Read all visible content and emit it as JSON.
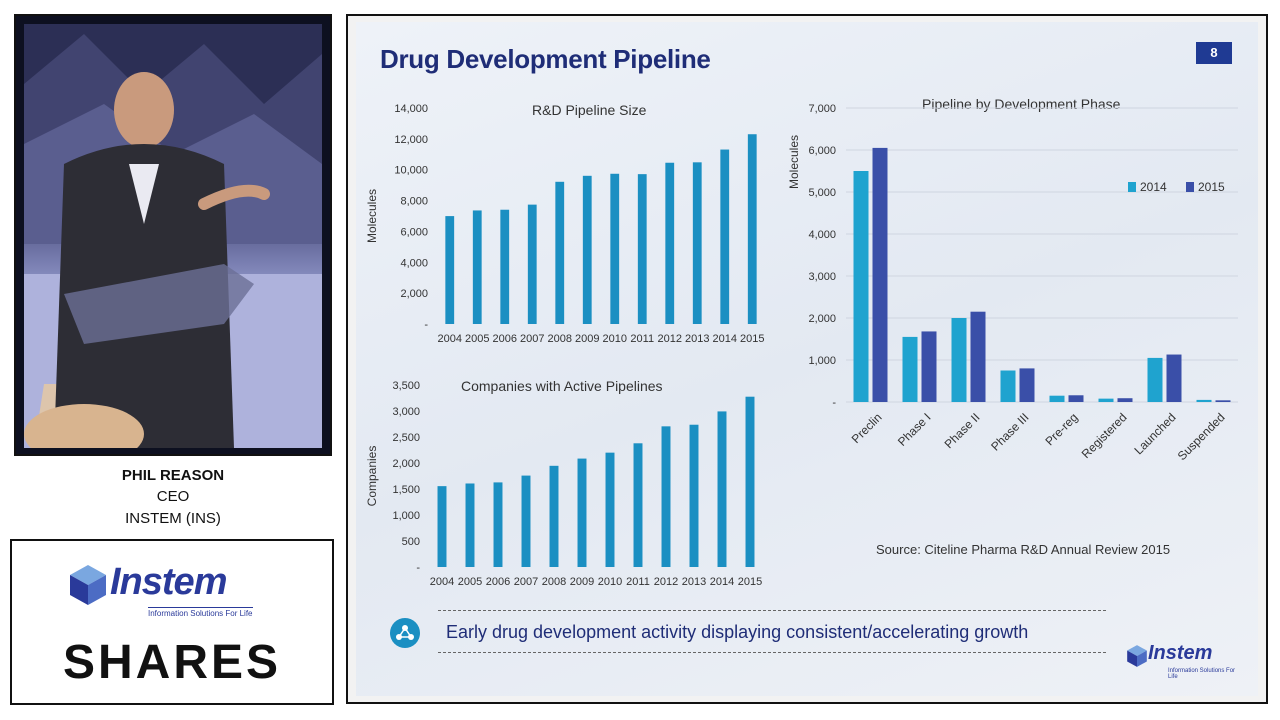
{
  "speaker": {
    "name": "PHIL REASON",
    "role": "CEO",
    "company": "INSTEM (INS)"
  },
  "logo": {
    "brand": "Instem",
    "tagline": "Information Solutions For Life",
    "brand_color": "#2a3a9a"
  },
  "shares_label": "SHARES",
  "slide": {
    "title": "Drug Development Pipeline",
    "page_number": "8",
    "source": "Source: Citeline Pharma R&D Annual Review 2015",
    "banner_text": "Early drug development activity displaying consistent/accelerating growth",
    "footer_logo": "Instem",
    "footer_tagline": "Information Solutions For Life"
  },
  "chart_data": [
    {
      "type": "bar",
      "title": "R&D Pipeline Size",
      "xlabel": "",
      "ylabel": "Molecules",
      "categories": [
        "2004",
        "2005",
        "2006",
        "2007",
        "2008",
        "2009",
        "2010",
        "2011",
        "2012",
        "2013",
        "2014",
        "2015"
      ],
      "values": [
        6994,
        7360,
        7406,
        7737,
        9217,
        9605,
        9737,
        9713,
        10452,
        10479,
        11307,
        12300
      ],
      "ylim": [
        0,
        14000
      ],
      "yticks": [
        "-",
        "2,000",
        "4,000",
        "6,000",
        "8,000",
        "10,000",
        "12,000",
        "14,000"
      ],
      "color": "#1b8fc2",
      "grid": false
    },
    {
      "type": "bar",
      "title": "Companies with Active Pipelines",
      "xlabel": "",
      "ylabel": "Companies",
      "categories": [
        "2004",
        "2005",
        "2006",
        "2007",
        "2008",
        "2009",
        "2010",
        "2011",
        "2012",
        "2013",
        "2014",
        "2015"
      ],
      "values": [
        1555,
        1606,
        1627,
        1758,
        1946,
        2085,
        2199,
        2379,
        2705,
        2736,
        2992,
        3275
      ],
      "ylim": [
        0,
        3500
      ],
      "yticks": [
        "-",
        "500",
        "1,000",
        "1,500",
        "2,000",
        "2,500",
        "3,000",
        "3,500"
      ],
      "color": "#1b8fc2",
      "grid": false
    },
    {
      "type": "bar",
      "title": "Pipeline by Development Phase",
      "xlabel": "",
      "ylabel": "Molecules",
      "categories": [
        "Preclin",
        "Phase I",
        "Phase II",
        "Phase III",
        "Pre-reg",
        "Registered",
        "Launched",
        "Suspended"
      ],
      "series": [
        {
          "name": "2014",
          "values": [
            5500,
            1550,
            2000,
            750,
            150,
            80,
            1050,
            50
          ],
          "color": "#1fa3cf"
        },
        {
          "name": "2015",
          "values": [
            6050,
            1680,
            2150,
            800,
            160,
            90,
            1130,
            40
          ],
          "color": "#3a4fa8"
        }
      ],
      "ylim": [
        0,
        7000
      ],
      "yticks": [
        "-",
        "1,000",
        "2,000",
        "3,000",
        "4,000",
        "5,000",
        "6,000",
        "7,000"
      ],
      "legend": "right",
      "grid": true
    }
  ]
}
